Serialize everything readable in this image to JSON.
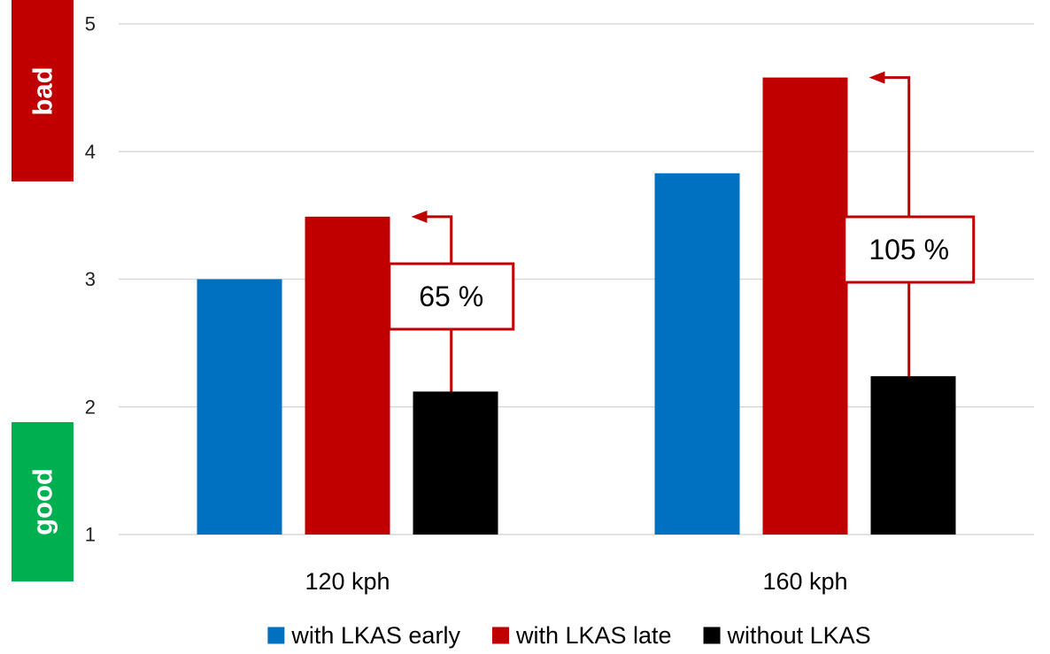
{
  "chart_data": {
    "type": "bar",
    "title": "",
    "xlabel": "",
    "ylabel": "",
    "categories": [
      "120 kph",
      "160 kph"
    ],
    "series": [
      {
        "name": "with LKAS early",
        "values": [
          3.0,
          3.83
        ],
        "color": "#0070C0"
      },
      {
        "name": "with LKAS late",
        "values": [
          3.49,
          4.58
        ],
        "color": "#C00000"
      },
      {
        "name": "without LKAS",
        "values": [
          2.12,
          2.24
        ],
        "color": "#000000"
      }
    ],
    "ylim": [
      1,
      5
    ],
    "yticks": [
      "1",
      "2",
      "3",
      "4",
      "5"
    ],
    "grid": true,
    "legend_position": "bottom",
    "annotations": [
      {
        "text": "65 %",
        "category": "120 kph",
        "from_series": "without LKAS",
        "to_series": "with LKAS late"
      },
      {
        "text": "105 %",
        "category": "160 kph",
        "from_series": "without LKAS",
        "to_series": "with LKAS late"
      }
    ],
    "scale_badges": {
      "top": {
        "text": "bad",
        "color": "#C00000"
      },
      "bottom": {
        "text": "good",
        "color": "#00B050"
      }
    },
    "annotation_color": "#C00000"
  }
}
